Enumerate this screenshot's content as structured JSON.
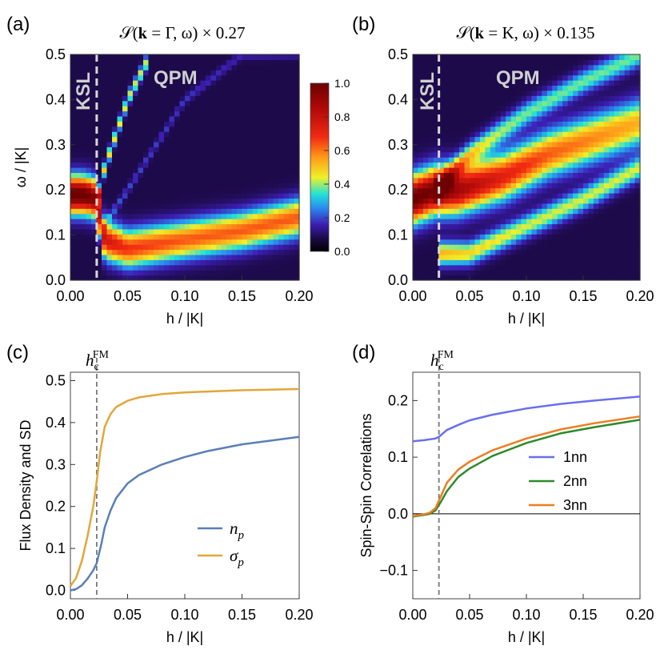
{
  "panels": {
    "a": {
      "label": "(a)",
      "title": "𝒮(𝐤 = Γ, ω) × 0.27",
      "region_ksl": "KSL",
      "region_qpm": "QPM"
    },
    "b": {
      "label": "(b)",
      "title": "𝒮(𝐤 = K, ω) × 0.135",
      "region_ksl": "KSL",
      "region_qpm": "QPM"
    },
    "c": {
      "label": "(c)",
      "hc_label": "h",
      "hc_sub": "c",
      "hc_sup": "FM"
    },
    "d": {
      "label": "(d)",
      "hc_label": "h",
      "hc_sub": "c",
      "hc_sup": "FM"
    }
  },
  "colorbar": {
    "ticks": [
      "0.0",
      "0.2",
      "0.4",
      "0.6",
      "0.8",
      "1.0"
    ]
  },
  "chart_data": [
    {
      "id": "a",
      "type": "heatmap",
      "xlabel": "h / |K|",
      "ylabel": "ω / |K|",
      "xlim": [
        0,
        0.2
      ],
      "ylim": [
        0,
        0.5
      ],
      "xticks": [
        "0.00",
        "0.05",
        "0.10",
        "0.15",
        "0.20"
      ],
      "yticks": [
        "0.0",
        "0.1",
        "0.2",
        "0.3",
        "0.4",
        "0.5"
      ],
      "zlim": [
        0,
        1
      ],
      "transition_h": 0.023,
      "bands": [
        {
          "name": "",
          "h": [
            0,
            0.01,
            0.02,
            0.023,
            0.03,
            0.05,
            0.1,
            0.15,
            0.2
          ],
          "w": [
            0.19,
            0.19,
            0.185,
            0.17,
            0.09,
            0.07,
            0.09,
            0.11,
            0.14
          ],
          "width": 0.04,
          "amp": [
            0.95,
            0.95,
            0.9,
            0.8,
            0.7,
            0.6,
            0.55,
            0.55,
            0.55
          ]
        },
        {
          "name": "",
          "h": [
            0.023,
            0.03,
            0.05,
            0.07
          ],
          "w": [
            0.17,
            0.25,
            0.4,
            0.5
          ],
          "width": 0.015,
          "amp": [
            0.6,
            0.4,
            0.35,
            0.35
          ]
        },
        {
          "name": "",
          "h": [
            0.023,
            0.05,
            0.1,
            0.15,
            0.2
          ],
          "w": [
            0.1,
            0.2,
            0.4,
            0.5,
            0.5
          ],
          "width": 0.01,
          "amp": [
            0.15,
            0.12,
            0.1,
            0.08,
            0.06
          ]
        }
      ]
    },
    {
      "id": "b",
      "type": "heatmap",
      "xlabel": "h / |K|",
      "ylabel": "",
      "xlim": [
        0,
        0.2
      ],
      "ylim": [
        0,
        0.5
      ],
      "xticks": [
        "0.00",
        "0.05",
        "0.10",
        "0.15",
        "0.20"
      ],
      "yticks": [
        "0.0",
        "0.1",
        "0.2",
        "0.3",
        "0.4",
        "0.5"
      ],
      "zlim": [
        0,
        1
      ],
      "transition_h": 0.023,
      "bands": [
        {
          "name": "",
          "h": [
            0,
            0.02,
            0.04,
            0.08,
            0.12,
            0.2
          ],
          "w": [
            0.18,
            0.2,
            0.2,
            0.23,
            0.28,
            0.35
          ],
          "width": 0.05,
          "amp": [
            0.95,
            0.9,
            0.8,
            0.65,
            0.55,
            0.45
          ]
        },
        {
          "name": "",
          "h": [
            0.023,
            0.05,
            0.1,
            0.15,
            0.2
          ],
          "w": [
            0.06,
            0.06,
            0.12,
            0.18,
            0.25
          ],
          "width": 0.025,
          "amp": [
            0.45,
            0.4,
            0.35,
            0.35,
            0.35
          ]
        },
        {
          "name": "",
          "h": [
            0.02,
            0.05,
            0.1,
            0.15,
            0.2
          ],
          "w": [
            0.2,
            0.28,
            0.37,
            0.44,
            0.5
          ],
          "width": 0.025,
          "amp": [
            0.4,
            0.35,
            0.3,
            0.3,
            0.3
          ]
        }
      ]
    },
    {
      "id": "c",
      "type": "line",
      "xlabel": "h / |K|",
      "ylabel": "Flux Density and SD",
      "xlim": [
        0,
        0.2
      ],
      "ylim": [
        -0.02,
        0.52
      ],
      "xticks": [
        "0.00",
        "0.05",
        "0.10",
        "0.15",
        "0.20"
      ],
      "yticks": [
        "0.0",
        "0.1",
        "0.2",
        "0.3",
        "0.4",
        "0.5"
      ],
      "vline": 0.023,
      "legend": "bottom-right",
      "series": [
        {
          "name": "n",
          "sub": "p",
          "color": "#5a7fb5",
          "x": [
            0,
            0.005,
            0.01,
            0.015,
            0.02,
            0.023,
            0.027,
            0.03,
            0.035,
            0.04,
            0.05,
            0.06,
            0.08,
            0.1,
            0.12,
            0.15,
            0.2
          ],
          "y": [
            0.0,
            0.003,
            0.012,
            0.028,
            0.048,
            0.065,
            0.11,
            0.15,
            0.19,
            0.22,
            0.255,
            0.275,
            0.3,
            0.318,
            0.332,
            0.348,
            0.366
          ]
        },
        {
          "name": "σ",
          "sub": "p",
          "color": "#e2a63a",
          "x": [
            0,
            0.005,
            0.01,
            0.015,
            0.02,
            0.023,
            0.026,
            0.03,
            0.035,
            0.04,
            0.05,
            0.06,
            0.08,
            0.1,
            0.12,
            0.15,
            0.2
          ],
          "y": [
            0.01,
            0.03,
            0.07,
            0.13,
            0.2,
            0.26,
            0.33,
            0.39,
            0.42,
            0.437,
            0.452,
            0.46,
            0.468,
            0.472,
            0.474,
            0.477,
            0.48
          ]
        }
      ]
    },
    {
      "id": "d",
      "type": "line",
      "xlabel": "h / |K|",
      "ylabel": "Spin-Spin Correlations",
      "xlim": [
        0,
        0.2
      ],
      "ylim": [
        -0.15,
        0.25
      ],
      "xticks": [
        "0.00",
        "0.05",
        "0.10",
        "0.15",
        "0.20"
      ],
      "yticks": [
        "−0.1",
        "0.0",
        "0.1",
        "0.2"
      ],
      "ytick_values": [
        -0.1,
        0,
        0.1,
        0.2
      ],
      "vline": 0.023,
      "hline": 0,
      "legend": "right",
      "series": [
        {
          "name": "1nn",
          "color": "#6a6ff0",
          "x": [
            0,
            0.01,
            0.02,
            0.023,
            0.03,
            0.04,
            0.05,
            0.07,
            0.1,
            0.13,
            0.16,
            0.2
          ],
          "y": [
            0.128,
            0.13,
            0.133,
            0.136,
            0.148,
            0.157,
            0.165,
            0.175,
            0.186,
            0.194,
            0.2,
            0.207
          ]
        },
        {
          "name": "2nn",
          "color": "#2e8a2a",
          "x": [
            0,
            0.01,
            0.015,
            0.02,
            0.025,
            0.03,
            0.04,
            0.05,
            0.07,
            0.1,
            0.13,
            0.16,
            0.2
          ],
          "y": [
            -0.005,
            -0.002,
            0.0,
            0.006,
            0.022,
            0.04,
            0.065,
            0.08,
            0.102,
            0.125,
            0.142,
            0.153,
            0.166
          ]
        },
        {
          "name": "3nn",
          "color": "#ee7d22",
          "x": [
            0,
            0.01,
            0.015,
            0.02,
            0.025,
            0.03,
            0.04,
            0.05,
            0.07,
            0.1,
            0.13,
            0.16,
            0.2
          ],
          "y": [
            -0.004,
            -0.001,
            0.002,
            0.01,
            0.032,
            0.055,
            0.078,
            0.092,
            0.112,
            0.133,
            0.149,
            0.16,
            0.172
          ]
        }
      ]
    }
  ]
}
